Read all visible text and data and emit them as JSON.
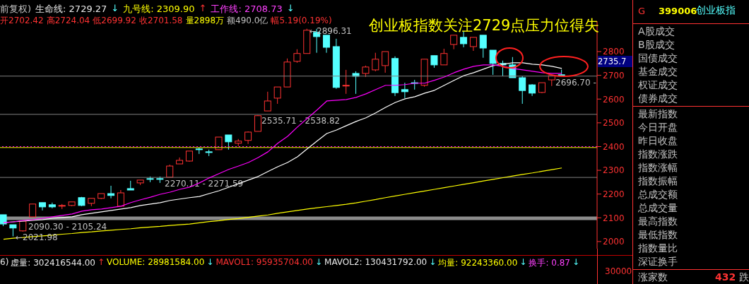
{
  "chart_data": {
    "type": "candlestick",
    "title": "创业板指数关注2729点压力位得失",
    "categories": [
      null,
      null,
      null,
      null,
      null,
      null,
      null,
      null,
      null,
      null,
      null,
      null,
      null,
      null,
      null,
      null,
      null,
      null,
      null,
      null,
      null,
      null,
      null,
      null,
      null,
      null,
      null,
      null,
      null,
      null,
      null,
      null,
      null,
      null,
      null,
      null,
      null,
      null,
      null,
      null,
      null,
      null,
      null,
      null,
      null,
      null,
      null,
      null,
      null,
      null,
      null,
      null,
      null,
      null,
      null,
      null,
      null,
      null
    ],
    "ohlc": [
      [
        2113,
        2113,
        2065,
        2074
      ],
      [
        2071,
        2071,
        2021.98,
        2057
      ],
      [
        2045,
        2086,
        2042,
        2086
      ],
      [
        2104,
        2158,
        2104,
        2158
      ],
      [
        2164,
        2164,
        2131,
        2146
      ],
      [
        2155,
        2164,
        2140,
        2146
      ],
      [
        2149,
        2158,
        2137,
        2152
      ],
      [
        2152,
        2167,
        2149,
        2167
      ],
      [
        2185,
        2188,
        2149,
        2152
      ],
      [
        2161,
        2182,
        2149,
        2182
      ],
      [
        2182,
        2202,
        2179,
        2202
      ],
      [
        2202,
        2235,
        2182,
        2194
      ],
      [
        2149,
        2217,
        2149,
        2205
      ],
      [
        2223,
        2256,
        2217,
        2217
      ],
      [
        2247,
        2259,
        2238,
        2259
      ],
      [
        2265,
        2274,
        2250,
        2262
      ],
      [
        2265,
        2274,
        2247,
        2262
      ],
      [
        2271,
        2324,
        2271,
        2318
      ],
      [
        2327,
        2354,
        2327,
        2342
      ],
      [
        2339,
        2381,
        2336,
        2381
      ],
      [
        2390,
        2396,
        2369,
        2387
      ],
      [
        2378,
        2387,
        2360,
        2375
      ],
      [
        2387,
        2440,
        2387,
        2440
      ],
      [
        2449,
        2449,
        2387,
        2420
      ],
      [
        2414,
        2432,
        2402,
        2423
      ],
      [
        2426,
        2464,
        2411,
        2461
      ],
      [
        2464,
        2533,
        2464,
        2530
      ],
      [
        2550,
        2631,
        2550,
        2592
      ],
      [
        2604,
        2651,
        2580,
        2651
      ],
      [
        2651,
        2771,
        2651,
        2756
      ],
      [
        2759,
        2810,
        2753,
        2792
      ],
      [
        2792,
        2896.31,
        2792,
        2890
      ],
      [
        2881,
        2896,
        2795,
        2863
      ],
      [
        2869,
        2869,
        2795,
        2818
      ],
      [
        2821,
        2854,
        2643,
        2649
      ],
      [
        2655,
        2723,
        2622,
        2658
      ],
      [
        2708,
        2717,
        2622,
        2696
      ],
      [
        2708,
        2741,
        2693,
        2735
      ],
      [
        2723,
        2795,
        2717,
        2768
      ],
      [
        2741,
        2800,
        2711,
        2800
      ],
      [
        2771,
        2780,
        2613,
        2627
      ],
      [
        2640,
        2669,
        2604,
        2631
      ],
      [
        2669,
        2681,
        2640,
        2666
      ],
      [
        2658,
        2768,
        2652,
        2768
      ],
      [
        2783,
        2783,
        2732,
        2744
      ],
      [
        2744,
        2812,
        2744,
        2792
      ],
      [
        2830,
        2869,
        2810,
        2869
      ],
      [
        2860,
        2887,
        2818,
        2833
      ],
      [
        2821,
        2860,
        2803,
        2860
      ],
      [
        2869,
        2869,
        2774,
        2815
      ],
      [
        2806,
        2806,
        2702,
        2750
      ],
      [
        2750,
        2762,
        2696,
        2744
      ],
      [
        2744,
        2777,
        2690,
        2690
      ],
      [
        2690,
        2696,
        2580,
        2636
      ],
      [
        2660,
        2663,
        2613,
        2625
      ],
      [
        2628,
        2669,
        2625,
        2669
      ],
      [
        2681,
        2699,
        2655,
        2699
      ],
      [
        2702.42,
        2724.04,
        2699.92,
        2701.58
      ]
    ],
    "colors": [
      "#54ffff",
      "#54ffff",
      "#ff3232",
      "#ff3232",
      "#54ffff",
      "#54ffff",
      "#ff3232",
      "#ff3232",
      "#54ffff",
      "#ff3232",
      "#ff3232",
      "#54ffff",
      "#ff3232",
      "#54ffff",
      "#ff3232",
      "#54ffff",
      "#54ffff",
      "#ff3232",
      "#ff3232",
      "#ff3232",
      "#54ffff",
      "#54ffff",
      "#ff3232",
      "#54ffff",
      "#ff3232",
      "#ff3232",
      "#ff3232",
      "#ff3232",
      "#ff3232",
      "#ff3232",
      "#ff3232",
      "#ff3232",
      "#54ffff",
      "#54ffff",
      "#54ffff",
      "#ff3232",
      "#54ffff",
      "#ff3232",
      "#ff3232",
      "#ff3232",
      "#54ffff",
      "#54ffff",
      "#54ffff",
      "#ff3232",
      "#54ffff",
      "#ff3232",
      "#ff3232",
      "#54ffff",
      "#ff3232",
      "#54ffff",
      "#54ffff",
      "#54ffff",
      "#54ffff",
      "#54ffff",
      "#54ffff",
      "#ff3232",
      "#ff3232",
      "#54ffff"
    ],
    "series": [
      {
        "type": "line",
        "color": "#ffffff",
        "values": [
          2080,
          2083,
          2086,
          2089,
          2092,
          2098,
          2101,
          2104,
          2113,
          2119,
          2125,
          2131,
          2137,
          2143,
          2152,
          2158,
          2164,
          2173,
          2179,
          2185,
          2190,
          2202,
          2214,
          2229,
          2244,
          2259,
          2274,
          2295,
          2315,
          2333,
          2357,
          2390,
          2423,
          2455,
          2470,
          2488,
          2506,
          2521,
          2542,
          2565,
          2586,
          2601,
          2610,
          2625,
          2637,
          2658,
          2679,
          2699,
          2711,
          2726,
          2741,
          2747,
          2753,
          2753,
          2747,
          2744,
          2738,
          2729
        ]
      },
      {
        "type": "line",
        "color": "#ffff00",
        "values": [
          2010,
          2014,
          2017,
          2021,
          2024,
          2027,
          2031,
          2034,
          2038,
          2041,
          2045,
          2048,
          2051,
          2054,
          2058,
          2061,
          2064,
          2068,
          2071,
          2074,
          2079,
          2084,
          2088,
          2093,
          2097,
          2102,
          2107,
          2112,
          2119,
          2125,
          2131,
          2137,
          2142,
          2147,
          2152,
          2157,
          2163,
          2170,
          2177,
          2185,
          2192,
          2199,
          2206,
          2213,
          2220,
          2227,
          2234,
          2241,
          2248,
          2255,
          2262,
          2269,
          2276,
          2283,
          2289,
          2296,
          2303,
          2310
        ]
      },
      {
        "type": "line",
        "color": "#ff00ff",
        "values": [
          2080,
          2083,
          2089,
          2092,
          2098,
          2104,
          2110,
          2116,
          2128,
          2134,
          2137,
          2143,
          2149,
          2164,
          2176,
          2187,
          2199,
          2208,
          2220,
          2229,
          2247,
          2268,
          2286,
          2304,
          2318,
          2333,
          2354,
          2378,
          2414,
          2443,
          2482,
          2518,
          2554,
          2592,
          2595,
          2598,
          2607,
          2622,
          2640,
          2658,
          2658,
          2661,
          2667,
          2667,
          2679,
          2693,
          2711,
          2726,
          2738,
          2744,
          2744,
          2738,
          2729,
          2723,
          2717,
          2711,
          2708,
          2708
        ]
      }
    ],
    "ylim": [
      1970,
      2928
    ],
    "yticks": [
      2000,
      2100,
      2200,
      2300,
      2400,
      2500,
      2600,
      2700,
      2800
    ],
    "tick_labels": "y",
    "grid": false,
    "legend": false,
    "marker": "none",
    "bands": [
      {
        "axis": "y",
        "from": 2090.3,
        "to": 2105.24,
        "label": "2090.30 - 2105.24",
        "color": "#8c8c8c"
      }
    ],
    "ref_lines": [
      {
        "axis": "y",
        "value": 2270.11,
        "label": "2270.11 - 2271.59",
        "color": "#808080"
      },
      {
        "axis": "y",
        "value": 2535.71,
        "label": "2535.71 - 2538.82",
        "color": "#808080"
      },
      {
        "axis": "y",
        "value": 2696.7,
        "label": "2696.70 - ",
        "color": "#808080"
      },
      {
        "axis": "y",
        "value": 2396,
        "color": "#ffff00"
      },
      {
        "axis": "y",
        "value": 2400,
        "color": "#ff00ff",
        "line_style": "dotted"
      }
    ],
    "annotations": [
      "前复权)",
      "生命线: 2729.27",
      "↓",
      "九号线: 2309.90",
      "↑",
      "工作线: 2708.73",
      "↓",
      "开2702.42",
      "高2724.04",
      "低2699.92",
      "收2701.58",
      "量2898万",
      "额490.0亿",
      "幅5.19(0.19%)",
      "6)",
      "虚量: 302416544.00",
      "↑",
      "VOLUME: 28981584.00",
      "↓",
      "MAVOL1: 95935704.00",
      "↓",
      "MAVOL2: 130431792.00",
      "↓",
      "均量: 92243360.00",
      "↓",
      "换手: 0.87",
      "↓",
      "G",
      "399006",
      "创业板指",
      "A股成交",
      "B股成交",
      "国债成交",
      "基金成交",
      "权证成交",
      "债券成交",
      "最新指数",
      "今日开盘",
      "昨日收盘",
      "指数涨跌",
      "指数涨幅",
      "指数振幅",
      "总成交额",
      "总成交量",
      "最高指数",
      "最低指数",
      "指数量比",
      "深证换手",
      "涨家数",
      "432",
      "跌",
      "2735.7",
      "30000",
      "←2021.98",
      "←2896.31"
    ]
  }
}
